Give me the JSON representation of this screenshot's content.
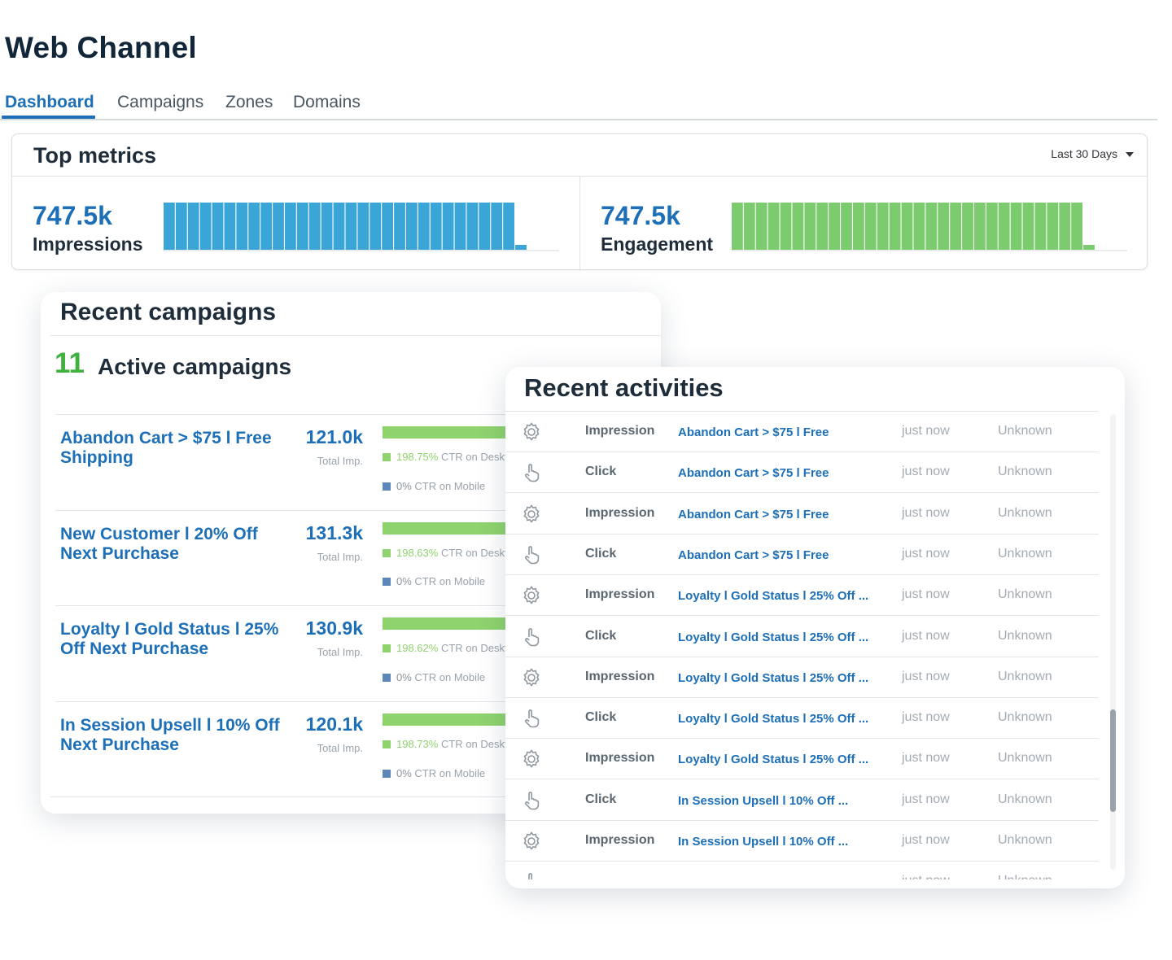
{
  "page": {
    "title": "Web Channel"
  },
  "tabs": [
    "Dashboard",
    "Campaigns",
    "Zones",
    "Domains"
  ],
  "top_metrics": {
    "title": "Top metrics",
    "range": "Last 30 Days",
    "impressions": {
      "value": "747.5k",
      "label": "Impressions",
      "color": "#3aa6d8"
    },
    "engagement": {
      "value": "747.5k",
      "label": "Engagement",
      "color": "#7ccc6f"
    }
  },
  "recent_campaigns": {
    "title": "Recent campaigns",
    "active_count": "11",
    "active_label": "Active campaigns",
    "total_imp_label": "Total Imp.",
    "items": [
      {
        "name": "Abandon Cart > $75 l Free Shipping",
        "impressions": "121.0k",
        "desktop_pct": "198.75%",
        "desktop_label": "CTR on Desktop",
        "mobile_pct": "0%",
        "mobile_label": "CTR on Mobile"
      },
      {
        "name": "New Customer l 20% Off Next Purchase",
        "impressions": "131.3k",
        "desktop_pct": "198.63%",
        "desktop_label": "CTR on Desktop",
        "mobile_pct": "0%",
        "mobile_label": "CTR on Mobile"
      },
      {
        "name": "Loyalty l Gold Status l 25% Off Next Purchase",
        "impressions": "130.9k",
        "desktop_pct": "198.62%",
        "desktop_label": "CTR on Desktop",
        "mobile_pct": "0%",
        "mobile_label": "CTR on Mobile"
      },
      {
        "name": "In Session Upsell l 10% Off Next Purchase",
        "impressions": "120.1k",
        "desktop_pct": "198.73%",
        "desktop_label": "CTR on Desktop",
        "mobile_pct": "0%",
        "mobile_label": "CTR on Mobile"
      }
    ]
  },
  "recent_activities": {
    "title": "Recent activities",
    "rows": [
      {
        "icon": "gear-icon",
        "type": "Impression",
        "campaign": "Abandon Cart > $75 l Free",
        "time": "just now",
        "device": "Unknown"
      },
      {
        "icon": "hand-pointer-icon",
        "type": "Click",
        "campaign": "Abandon Cart > $75 l Free",
        "time": "just now",
        "device": "Unknown"
      },
      {
        "icon": "gear-icon",
        "type": "Impression",
        "campaign": "Abandon Cart > $75 l Free",
        "time": "just now",
        "device": "Unknown"
      },
      {
        "icon": "hand-pointer-icon",
        "type": "Click",
        "campaign": "Abandon Cart > $75 l Free",
        "time": "just now",
        "device": "Unknown"
      },
      {
        "icon": "gear-icon",
        "type": "Impression",
        "campaign": "Loyalty l Gold Status l 25% Off ...",
        "time": "just now",
        "device": "Unknown"
      },
      {
        "icon": "hand-pointer-icon",
        "type": "Click",
        "campaign": "Loyalty l Gold Status l 25% Off ...",
        "time": "just now",
        "device": "Unknown"
      },
      {
        "icon": "gear-icon",
        "type": "Impression",
        "campaign": "Loyalty l Gold Status l 25% Off ...",
        "time": "just now",
        "device": "Unknown"
      },
      {
        "icon": "hand-pointer-icon",
        "type": "Click",
        "campaign": "Loyalty l Gold Status l 25% Off ...",
        "time": "just now",
        "device": "Unknown"
      },
      {
        "icon": "gear-icon",
        "type": "Impression",
        "campaign": "Loyalty l Gold Status l 25% Off ...",
        "time": "just now",
        "device": "Unknown"
      },
      {
        "icon": "hand-pointer-icon",
        "type": "Click",
        "campaign": "In Session Upsell l 10% Off ...",
        "time": "just now",
        "device": "Unknown"
      },
      {
        "icon": "gear-icon",
        "type": "Impression",
        "campaign": "In Session Upsell l 10% Off ...",
        "time": "just now",
        "device": "Unknown"
      },
      {
        "icon": "hand-pointer-icon",
        "type": "",
        "campaign": "",
        "time": "just now",
        "device": "Unknown"
      }
    ]
  }
}
